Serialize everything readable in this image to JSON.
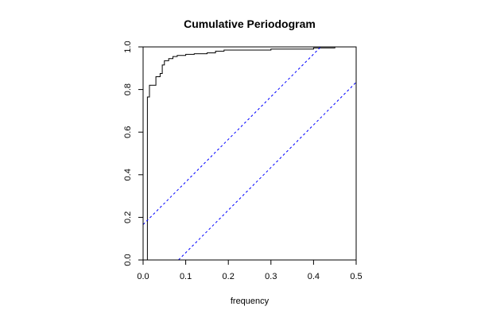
{
  "chart_data": {
    "type": "line",
    "title": "Cumulative Periodogram",
    "xlabel": "frequency",
    "ylabel": "",
    "xlim": [
      0,
      0.5
    ],
    "ylim": [
      0,
      1
    ],
    "x_ticks": [
      "0.0",
      "0.1",
      "0.2",
      "0.3",
      "0.4",
      "0.5"
    ],
    "y_ticks": [
      "0.0",
      "0.2",
      "0.4",
      "0.6",
      "0.8",
      "1.0"
    ],
    "grid": false,
    "legend": "none",
    "series": [
      {
        "style": "step",
        "color": "#000000",
        "points": [
          [
            0.01,
            0.0
          ],
          [
            0.01,
            0.765
          ],
          [
            0.015,
            0.765
          ],
          [
            0.015,
            0.82
          ],
          [
            0.03,
            0.82
          ],
          [
            0.03,
            0.86
          ],
          [
            0.04,
            0.86
          ],
          [
            0.04,
            0.875
          ],
          [
            0.045,
            0.875
          ],
          [
            0.045,
            0.915
          ],
          [
            0.05,
            0.915
          ],
          [
            0.05,
            0.935
          ],
          [
            0.06,
            0.935
          ],
          [
            0.06,
            0.945
          ],
          [
            0.07,
            0.945
          ],
          [
            0.07,
            0.955
          ],
          [
            0.08,
            0.955
          ],
          [
            0.08,
            0.96
          ],
          [
            0.1,
            0.96
          ],
          [
            0.1,
            0.965
          ],
          [
            0.12,
            0.965
          ],
          [
            0.12,
            0.968
          ],
          [
            0.15,
            0.968
          ],
          [
            0.15,
            0.972
          ],
          [
            0.17,
            0.972
          ],
          [
            0.17,
            0.98
          ],
          [
            0.19,
            0.98
          ],
          [
            0.19,
            0.985
          ],
          [
            0.3,
            0.985
          ],
          [
            0.3,
            0.99
          ],
          [
            0.4,
            0.99
          ],
          [
            0.4,
            0.995
          ],
          [
            0.45,
            0.995
          ],
          [
            0.45,
            1.0
          ],
          [
            0.5,
            1.0
          ]
        ]
      },
      {
        "style": "dashed",
        "color": "#0000ff",
        "points": [
          [
            0,
            0.166
          ],
          [
            0.417,
            1.0
          ]
        ]
      },
      {
        "style": "dashed",
        "color": "#0000ff",
        "points": [
          [
            0.083,
            0.0
          ],
          [
            0.5,
            0.834
          ]
        ]
      }
    ]
  }
}
